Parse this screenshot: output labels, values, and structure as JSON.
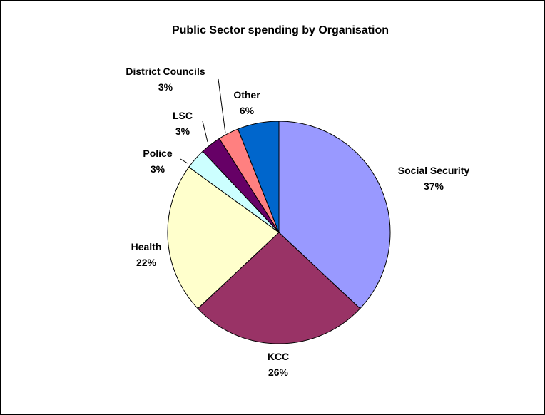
{
  "chart_data": {
    "type": "pie",
    "title": "Public Sector spending by Organisation",
    "slices": [
      {
        "label": "Social Security",
        "value": 37,
        "value_label": "37%",
        "color": "#9999ff"
      },
      {
        "label": "KCC",
        "value": 26,
        "value_label": "26%",
        "color": "#993366"
      },
      {
        "label": "Health",
        "value": 22,
        "value_label": "22%",
        "color": "#ffffcc"
      },
      {
        "label": "Police",
        "value": 3,
        "value_label": "3%",
        "color": "#ccffff"
      },
      {
        "label": "LSC",
        "value": 3,
        "value_label": "3%",
        "color": "#660066"
      },
      {
        "label": "District Councils",
        "value": 3,
        "value_label": "3%",
        "color": "#ff8080"
      },
      {
        "label": "Other",
        "value": 6,
        "value_label": "6%",
        "color": "#0066cc"
      }
    ],
    "start": "12 o'clock",
    "direction": "clockwise",
    "legend": false
  }
}
